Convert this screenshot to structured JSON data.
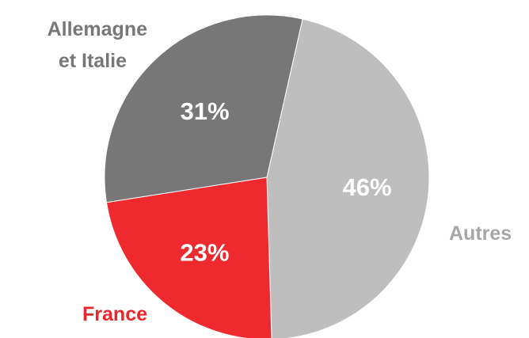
{
  "chart_data": {
    "type": "pie",
    "slices": [
      {
        "category": "Autres",
        "value": 46,
        "value_label": "46%",
        "color": "#bebebe",
        "label_color": "#a6a6a6"
      },
      {
        "category": "France",
        "value": 23,
        "value_label": "23%",
        "color": "#ee2a2e",
        "label_color": "#e8262c"
      },
      {
        "category": "Allemagne et Italie",
        "value": 31,
        "value_label": "31%",
        "color": "#777777",
        "label_color": "#777777"
      }
    ],
    "category_labels": {
      "autres": "Autres",
      "france": "France",
      "allemagne_line1": "Allemagne",
      "allemagne_line2": "et Italie"
    }
  }
}
